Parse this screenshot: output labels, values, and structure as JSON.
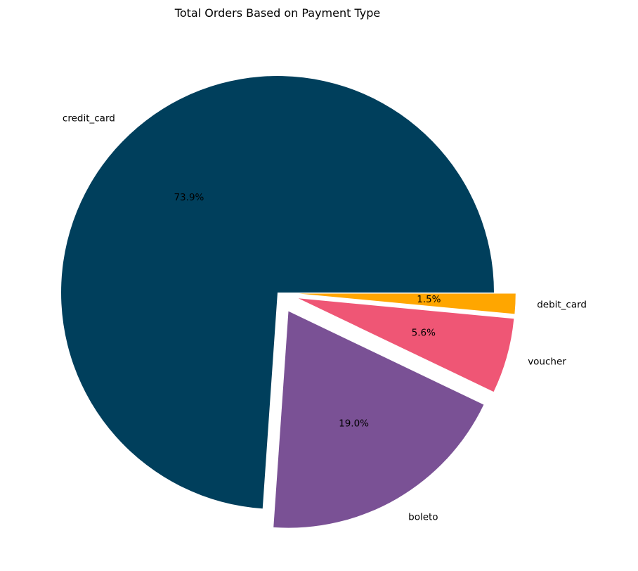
{
  "chart_data": {
    "type": "pie",
    "title": "Total Orders Based on Payment Type",
    "slices": [
      {
        "label": "credit_card",
        "value": 73.9,
        "pct_label": "73.9%",
        "color": "#003f5c",
        "explode": false
      },
      {
        "label": "boleto",
        "value": 19.0,
        "pct_label": "19.0%",
        "color": "#7a5195",
        "explode": true
      },
      {
        "label": "voucher",
        "value": 5.6,
        "pct_label": "5.6%",
        "color": "#ef5675",
        "explode": true
      },
      {
        "label": "debit_card",
        "value": 1.5,
        "pct_label": "1.5%",
        "color": "#ffa600",
        "explode": true
      }
    ],
    "start_angle_deg": 0,
    "direction": "counterclockwise",
    "legend": "none"
  }
}
